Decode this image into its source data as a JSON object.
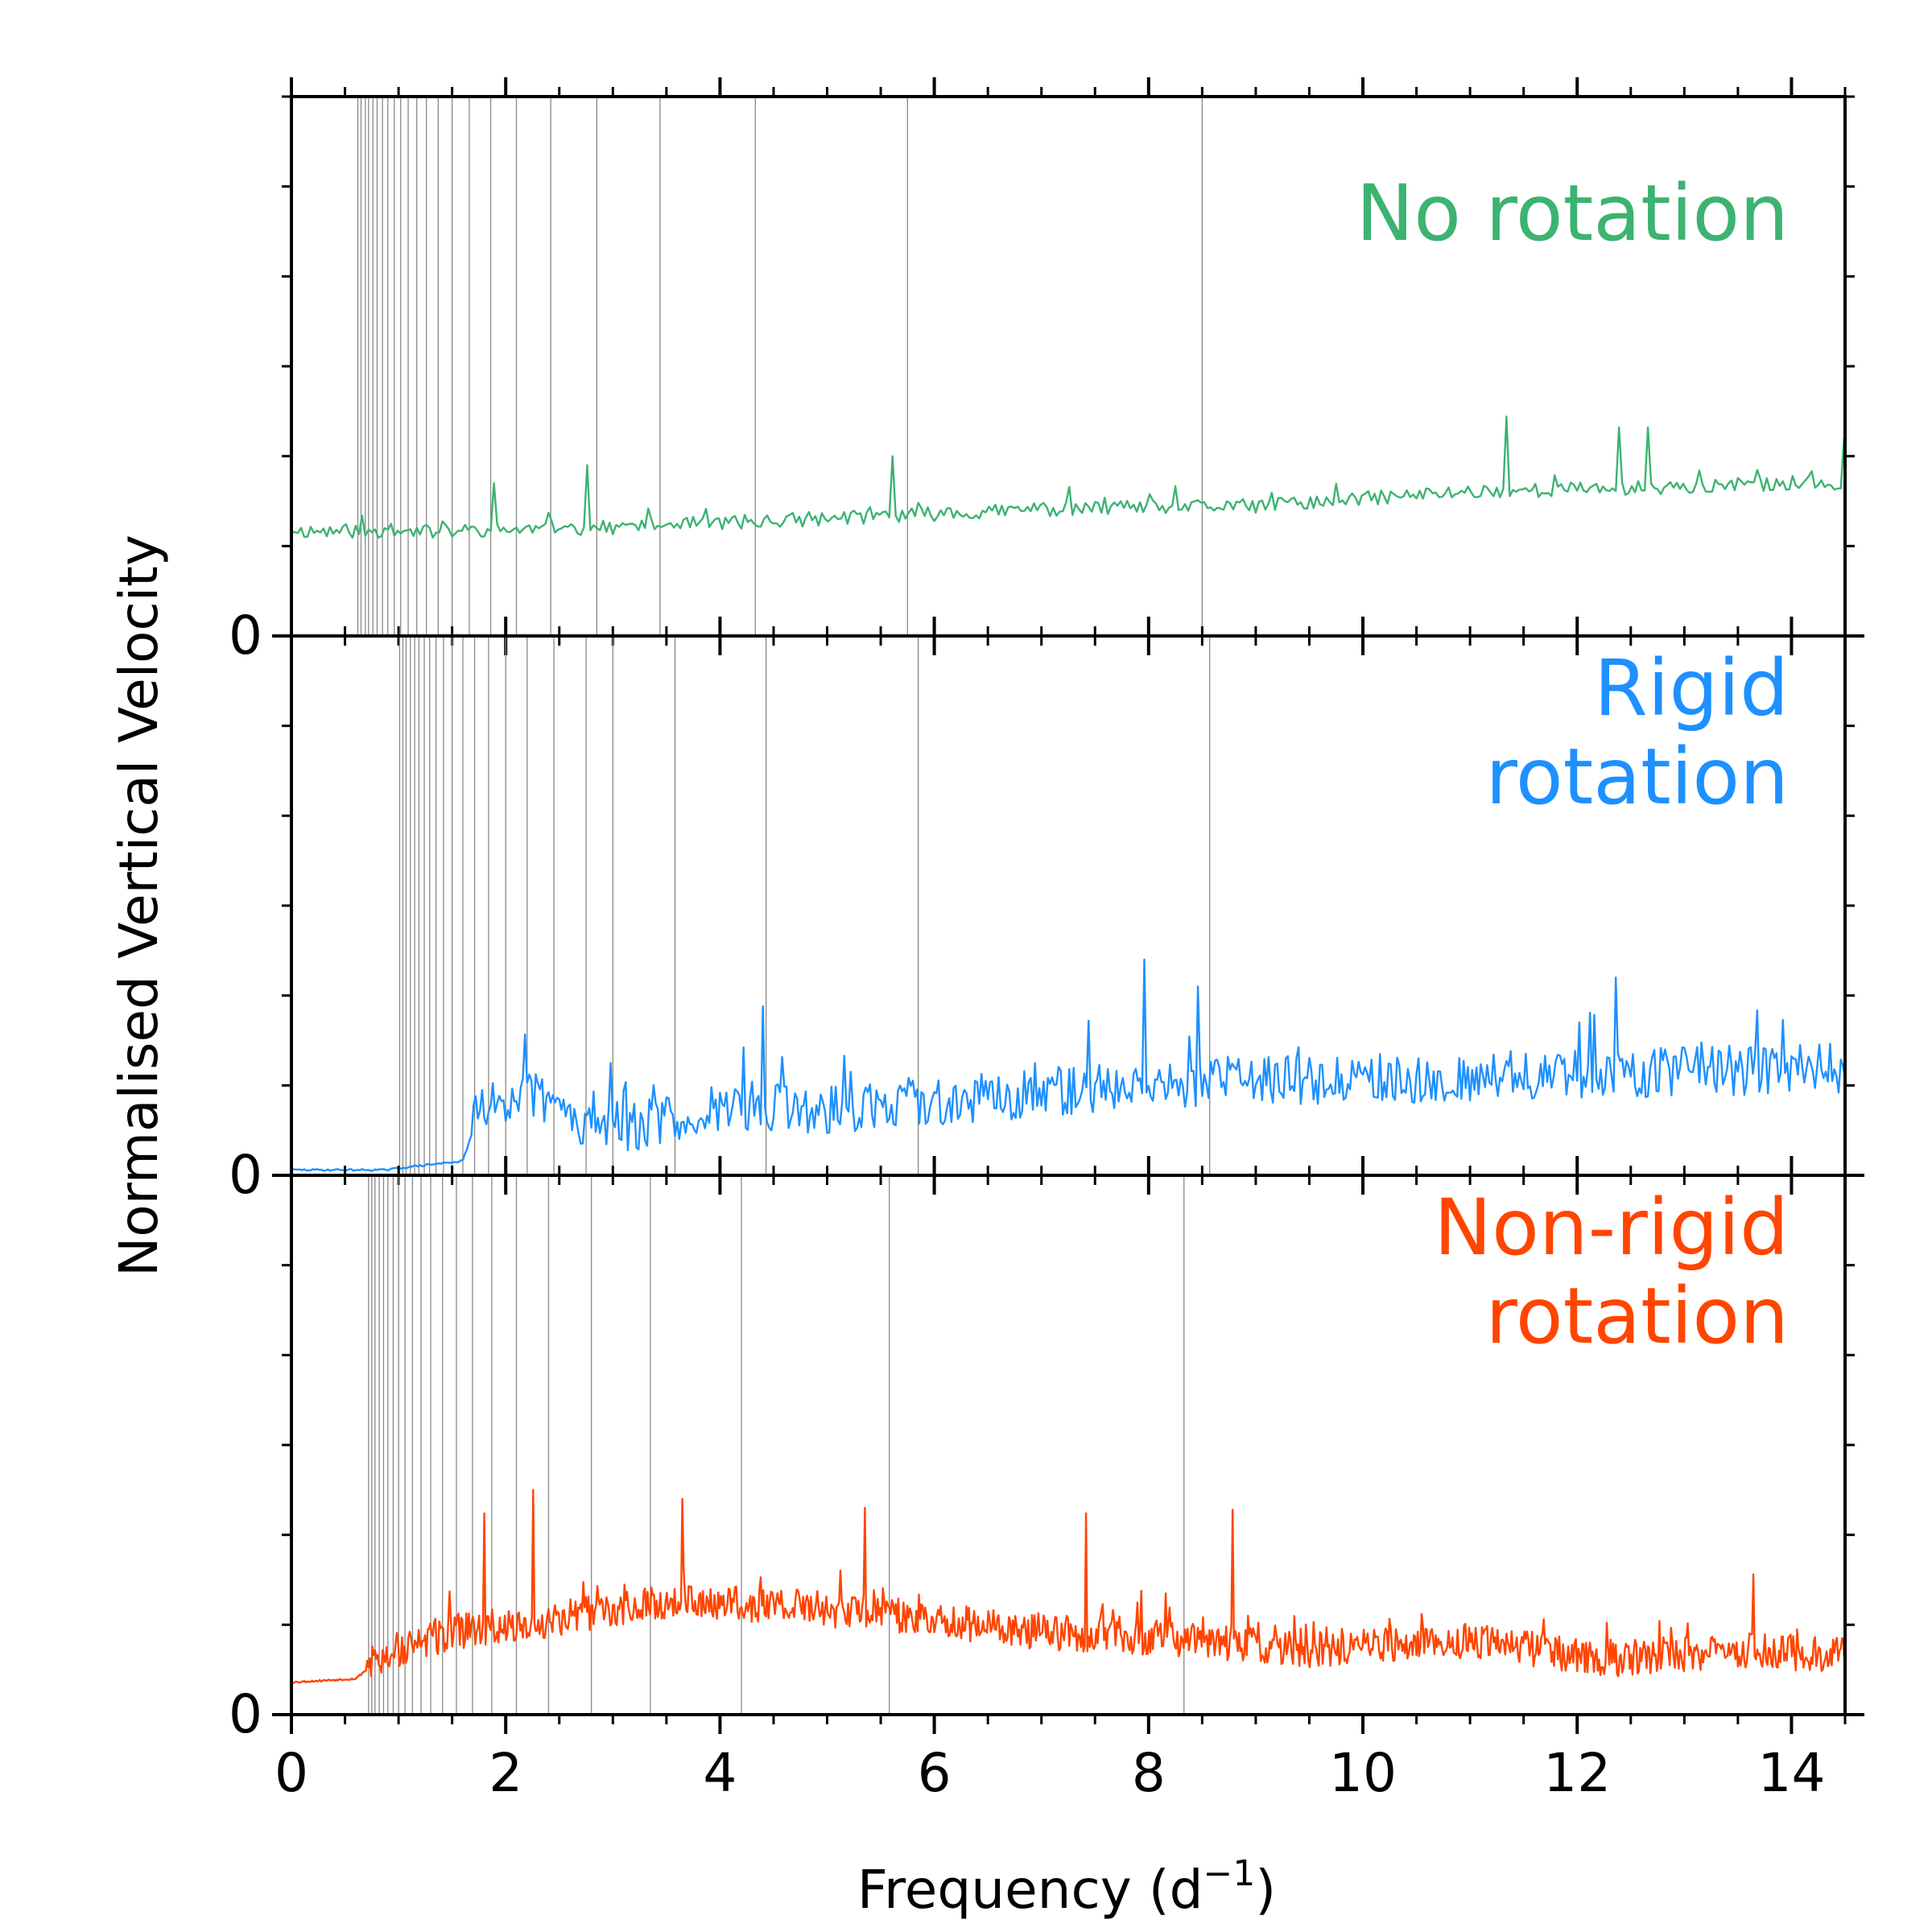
{
  "figure": {
    "ylabel": "Normalised Vertical Velocity",
    "xlabel_main": "Frequency (d",
    "xlabel_sup": "−1",
    "xlabel_close": ")"
  },
  "chart_data": {
    "type": "line",
    "shared_x_axis": true,
    "xlim": [
      0,
      14.5
    ],
    "x_ticks": [
      0,
      2,
      4,
      6,
      8,
      10,
      12,
      14
    ],
    "x_tick_labels": [
      "0",
      "2",
      "4",
      "6",
      "8",
      "10",
      "12",
      "14"
    ],
    "x_minor_step": 0.5,
    "grid": false,
    "panels": [
      {
        "annotation": [
          "No rotation"
        ],
        "color": "#3cb371",
        "ylim": [
          0,
          3
        ],
        "y_tick_labels": [
          "0"
        ],
        "y_minor_step": 0.5,
        "x_start": 0,
        "step": 0.03,
        "base": [
          [
            0,
            0.58
          ],
          [
            1.5,
            0.58
          ],
          [
            3,
            0.6
          ],
          [
            5,
            0.65
          ],
          [
            7,
            0.7
          ],
          [
            9,
            0.72
          ],
          [
            11,
            0.8
          ],
          [
            12.5,
            0.82
          ],
          [
            14.5,
            0.85
          ]
        ],
        "noise": 0.04,
        "noise_start": 0.04,
        "spikes": [
          [
            1.9,
            0.85
          ],
          [
            2.75,
            0.95
          ],
          [
            5.6,
            1.0
          ],
          [
            11.35,
            1.22
          ],
          [
            12.4,
            1.16
          ],
          [
            12.65,
            1.16
          ],
          [
            14.5,
            1.1
          ]
        ],
        "seed": 11,
        "vlines": [
          0.62,
          0.65,
          0.69,
          0.72,
          0.76,
          0.8,
          0.85,
          0.9,
          0.96,
          1.02,
          1.09,
          1.17,
          1.26,
          1.37,
          1.5,
          1.66,
          1.86,
          2.1,
          2.42,
          2.85,
          3.44,
          4.33,
          5.75,
          8.5
        ]
      },
      {
        "annotation": [
          "Rigid",
          "rotation"
        ],
        "color": "#1e90ff",
        "ylim": [
          0,
          3
        ],
        "y_tick_labels": [
          "0"
        ],
        "y_minor_step": 0.5,
        "x_start": 0,
        "step": 0.02,
        "base": [
          [
            0,
            0.03
          ],
          [
            0.9,
            0.03
          ],
          [
            1.0,
            0.04
          ],
          [
            1.6,
            0.08
          ],
          [
            1.75,
            0.35
          ],
          [
            2.2,
            0.45
          ],
          [
            2.7,
            0.3
          ],
          [
            3.2,
            0.25
          ],
          [
            4,
            0.38
          ],
          [
            5,
            0.35
          ],
          [
            6,
            0.4
          ],
          [
            8,
            0.5
          ],
          [
            10,
            0.52
          ],
          [
            12,
            0.55
          ],
          [
            14.5,
            0.58
          ]
        ],
        "noise": 0.14,
        "noise_start": 1.7,
        "spikes": [
          [
            4.4,
            0.94
          ],
          [
            7.95,
            1.2
          ],
          [
            8.45,
            1.05
          ],
          [
            12.35,
            1.1
          ]
        ],
        "seed": 29,
        "vlines": [
          1.01,
          1.04,
          1.07,
          1.11,
          1.15,
          1.19,
          1.24,
          1.29,
          1.35,
          1.42,
          1.5,
          1.6,
          1.71,
          1.84,
          2.0,
          2.2,
          2.45,
          2.75,
          3.0,
          3.58,
          4.43,
          5.85,
          8.57
        ]
      },
      {
        "annotation": [
          "Non-rigid",
          "rotation"
        ],
        "color": "#ff4500",
        "ylim": [
          0,
          3
        ],
        "y_tick_labels": [
          "0"
        ],
        "y_minor_step": 0.5,
        "x_start": 0,
        "step": 0.012,
        "base": [
          [
            0,
            0.18
          ],
          [
            0.6,
            0.2
          ],
          [
            0.8,
            0.3
          ],
          [
            1.5,
            0.45
          ],
          [
            2.2,
            0.5
          ],
          [
            3.5,
            0.62
          ],
          [
            4.5,
            0.6
          ],
          [
            5.5,
            0.55
          ],
          [
            7,
            0.45
          ],
          [
            8.5,
            0.4
          ],
          [
            9.5,
            0.35
          ],
          [
            11,
            0.4
          ],
          [
            12.3,
            0.3
          ],
          [
            13.5,
            0.35
          ],
          [
            14.5,
            0.32
          ]
        ],
        "noise": 0.1,
        "noise_start": 0.7,
        "spikes": [
          [
            1.8,
            1.12
          ],
          [
            2.26,
            1.25
          ],
          [
            3.65,
            1.2
          ],
          [
            5.35,
            1.15
          ],
          [
            7.42,
            1.12
          ],
          [
            8.78,
            1.14
          ],
          [
            13.65,
            0.78
          ]
        ],
        "seed": 53,
        "vlines": [
          0.72,
          0.75,
          0.78,
          0.82,
          0.86,
          0.9,
          0.95,
          1.0,
          1.06,
          1.13,
          1.21,
          1.3,
          1.41,
          1.54,
          1.69,
          1.87,
          2.1,
          2.4,
          2.8,
          3.35,
          4.2,
          5.58,
          8.33
        ]
      }
    ]
  }
}
